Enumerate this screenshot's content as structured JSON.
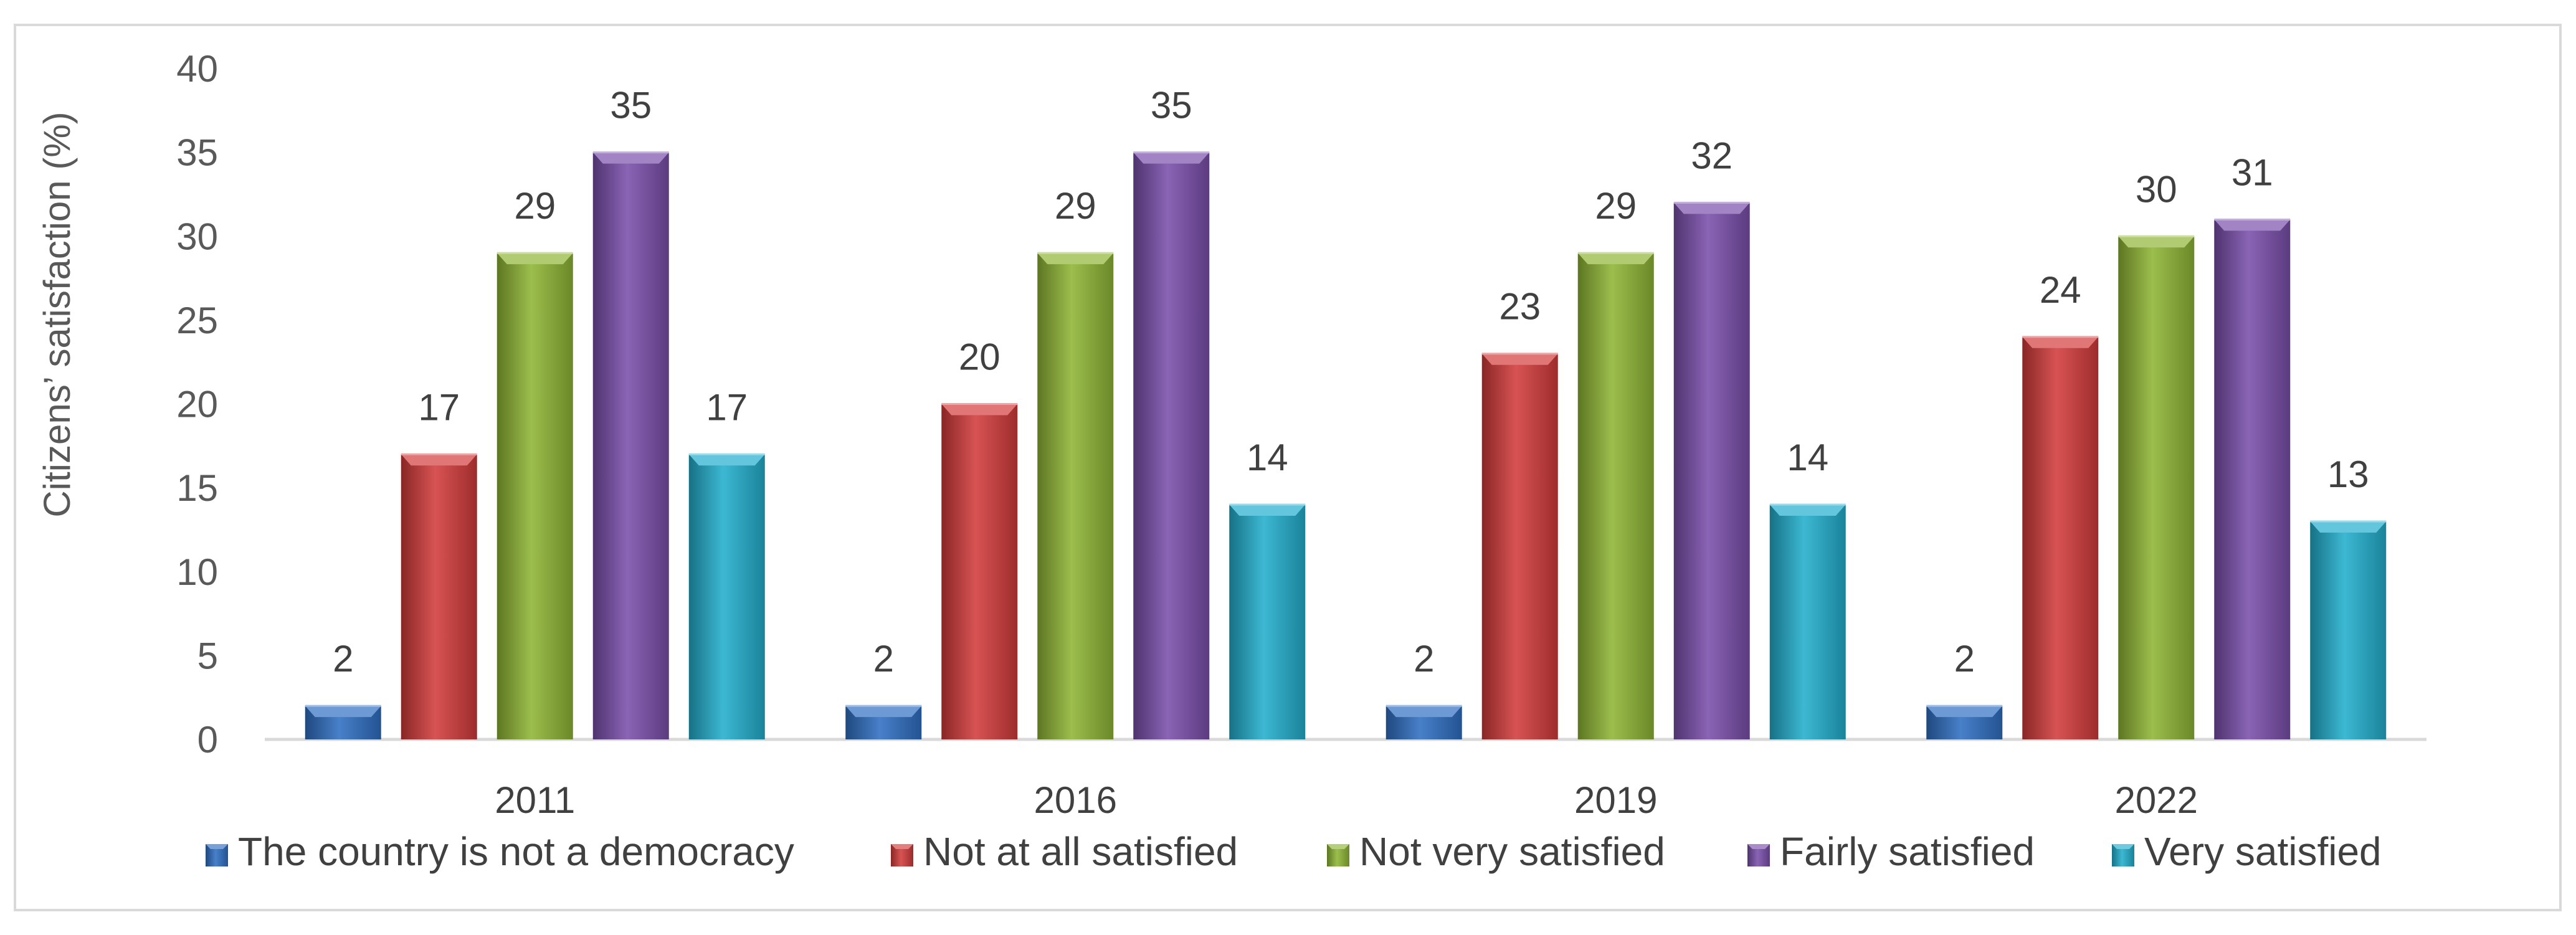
{
  "chart_data": {
    "type": "bar",
    "title": "",
    "xlabel": "",
    "ylabel": "Citizens’ satisfaction  (%)",
    "ylim": [
      0,
      40
    ],
    "yticks": [
      0,
      5,
      10,
      15,
      20,
      25,
      30,
      35,
      40
    ],
    "categories": [
      "2011",
      "2016",
      "2019",
      "2022"
    ],
    "legend_position": "bottom",
    "grid": false,
    "series": [
      {
        "name": "The country is not a democracy",
        "color": "#2f6fc2",
        "values": [
          2,
          2,
          2,
          2
        ]
      },
      {
        "name": "Not at all satisfied",
        "color": "#d33b3b",
        "values": [
          17,
          20,
          23,
          24
        ]
      },
      {
        "name": "Not very satisfied",
        "color": "#8fb535",
        "values": [
          29,
          29,
          29,
          30
        ]
      },
      {
        "name": "Fairly satisfied",
        "color": "#7a4fab",
        "values": [
          35,
          35,
          32,
          31
        ]
      },
      {
        "name": "Very satisfied",
        "color": "#22aecd",
        "values": [
          17,
          14,
          14,
          13
        ]
      }
    ]
  }
}
